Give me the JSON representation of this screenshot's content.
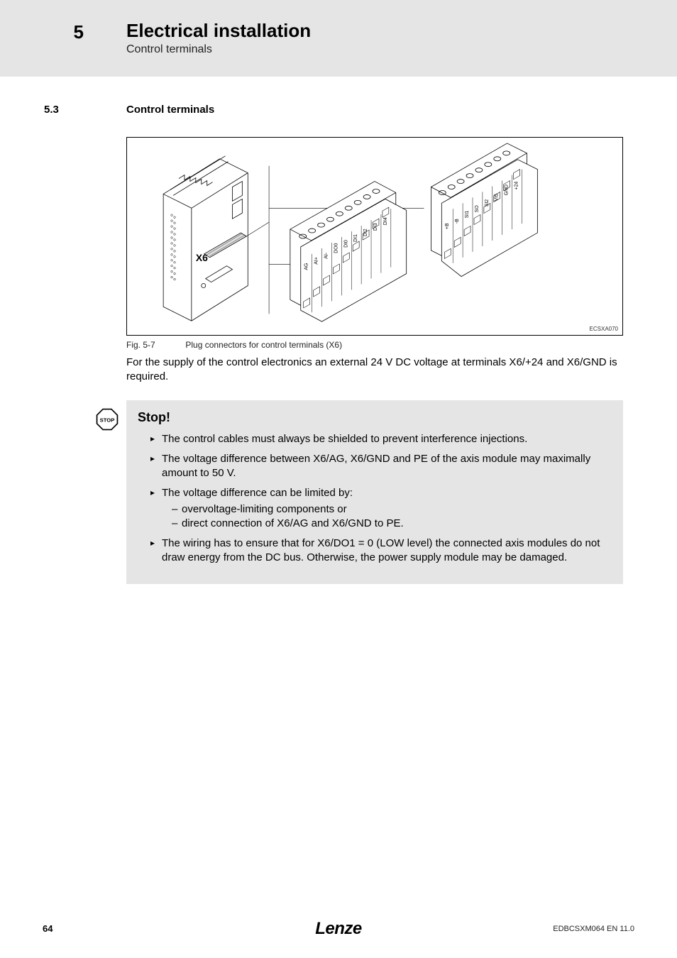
{
  "header": {
    "chapter_number": "5",
    "chapter_title": "Electrical installation",
    "chapter_subtitle": "Control terminals"
  },
  "section": {
    "number": "5.3",
    "title": "Control terminals"
  },
  "figure": {
    "label_x6": "X6",
    "code": "ECSXA070",
    "caption_num": "Fig. 5-7",
    "caption_text": "Plug connectors for control terminals (X6)",
    "connector1_pins": [
      "AG",
      "AI+",
      "AI-",
      "DO0",
      "DI0",
      "DI1",
      "DI2",
      "DI3",
      "DI4"
    ],
    "connector2_pins": [
      "+B",
      "-B",
      "SI1",
      "SO",
      "SI2",
      "VI5",
      "GND",
      "+24"
    ]
  },
  "body_paragraph": "For the supply of the control electronics an external 24 V DC voltage at terminals X6/+24 and X6/GND is required.",
  "stop": {
    "icon_text": "STOP",
    "title": "Stop!",
    "items": [
      {
        "text": "The control cables must always be shielded to prevent interference injections."
      },
      {
        "text": "The voltage difference between X6/AG, X6/GND and PE of the axis module may maximally amount to 50 V."
      },
      {
        "text": "The voltage difference can be limited by:",
        "sub": [
          "overvoltage-limiting components or",
          "direct connection of X6/AG and X6/GND to PE."
        ]
      },
      {
        "text": "The wiring has to ensure that for X6/DO1 = 0 (LOW level) the connected axis modules do not draw energy from the DC bus. Otherwise, the power supply module may be damaged."
      }
    ]
  },
  "footer": {
    "page": "64",
    "brand": "Lenze",
    "doc_code": "EDBCSXM064 EN 11.0"
  },
  "colors": {
    "header_bg": "#e5e5e5",
    "stop_bg": "#e5e5e5",
    "text": "#000000"
  }
}
